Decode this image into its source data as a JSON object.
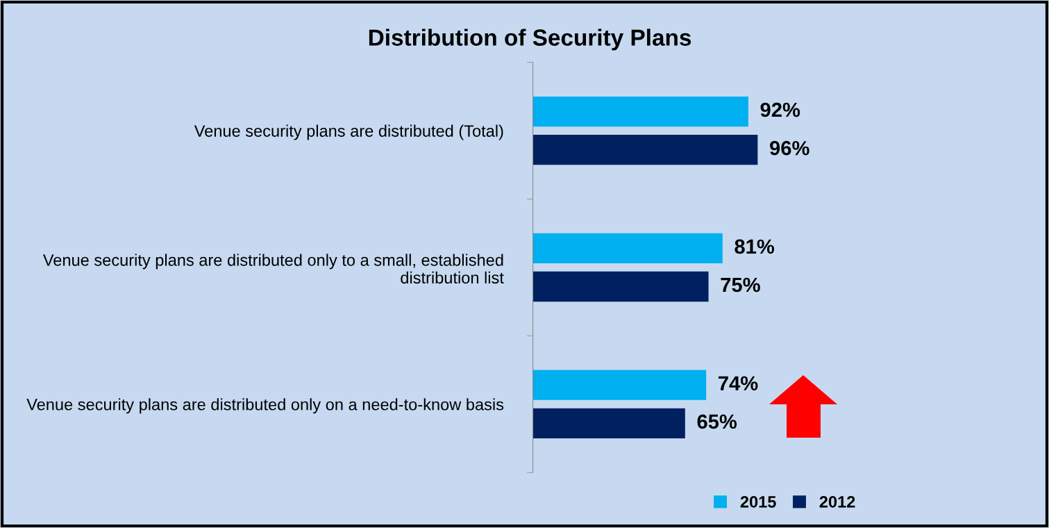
{
  "chart_data": {
    "type": "bar",
    "orientation": "horizontal",
    "title": "Distribution of Security Plans",
    "categories": [
      "Venue security plans are distributed (Total)",
      "Venue security plans are distributed only to a small, established distribution list",
      "Venue security plans are distributed only on a need-to-know basis"
    ],
    "series": [
      {
        "name": "2015",
        "color": "#00b0f0",
        "values": [
          92,
          81,
          74
        ],
        "value_labels": [
          "92%",
          "81%",
          "74%"
        ]
      },
      {
        "name": "2012",
        "color": "#002060",
        "values": [
          96,
          75,
          65
        ],
        "value_labels": [
          "96%",
          "75%",
          "65%"
        ]
      }
    ],
    "legend": "bottom",
    "tick_labels": "y"
  }
}
